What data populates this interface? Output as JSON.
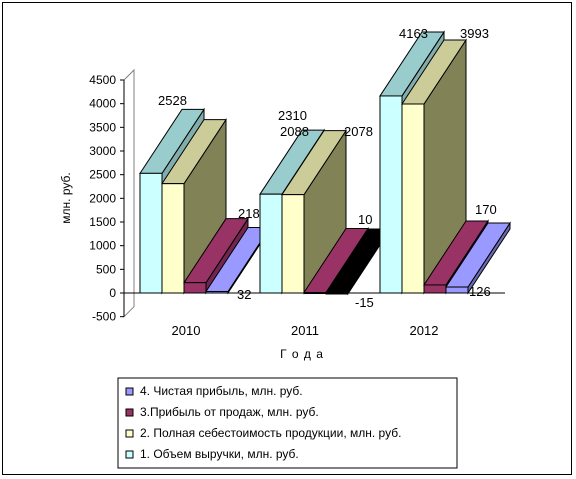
{
  "chart_data": {
    "type": "bar",
    "style": "3d-grouped",
    "title": "",
    "xlabel": "Г о д а",
    "ylabel": "млн. руб.",
    "ylim": [
      -500,
      4500
    ],
    "yticks": [
      -500,
      0,
      500,
      1000,
      1500,
      2000,
      2500,
      3000,
      3500,
      4000,
      4500
    ],
    "categories": [
      "2010",
      "2011",
      "2012"
    ],
    "grid": false,
    "legend_position": "bottom",
    "series": [
      {
        "name": "1. Объем выручки, млн. руб.",
        "values": [
          2528,
          2088,
          4163
        ],
        "color": "#ccffff"
      },
      {
        "name": "2. Полная себестоимость продукции, млн. руб.",
        "values": [
          2310,
          2078,
          3993
        ],
        "color": "#ffffcc"
      },
      {
        "name": "3.Прибыль от продаж, млн. руб.",
        "values": [
          218,
          10,
          170
        ],
        "color": "#993366"
      },
      {
        "name": "4. Чистая прибыль, млн. руб.",
        "values": [
          32,
          -15,
          126
        ],
        "color": "#9999ff"
      }
    ],
    "value_labels": [
      [
        "2528",
        "2310",
        "218",
        "32"
      ],
      [
        "2088",
        "2078",
        "10",
        "-15"
      ],
      [
        "4163",
        "3993",
        "170",
        "126"
      ]
    ],
    "special_colors": {
      "negative_bar": "#000000",
      "plot_border": "#808080"
    }
  }
}
